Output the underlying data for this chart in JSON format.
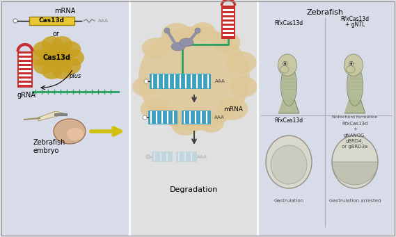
{
  "bg_color": "#e0e0e0",
  "panel1_bg": "#d8dce8",
  "panel3_bg": "#d8dce8",
  "yellow_box_color": "#e8c832",
  "cas13d_protein_color": "#c8a020",
  "grna_stem_color": "#c83030",
  "grna_tail_color": "#28a060",
  "mrna_box_color": "#40a0c0",
  "cell_color": "#dfc896",
  "scissors_color": "#9090a8",
  "fish_body_color": "#b0b890",
  "fish_body2_color": "#c8c8a0",
  "embryo_color": "#d4b090",
  "title_zebrafish": "Zebrafish",
  "label_mrna_top": "mRNA",
  "label_cas13d_box": "Cas13d",
  "label_or": "or",
  "label_cas13d_protein": "Cas13d",
  "label_plus": "plus",
  "label_grna": "gRNA",
  "label_zebrafish_embryo": "Zebrafish\nembryo",
  "label_degradation": "Degradation",
  "label_mrna_mid": "mRNA",
  "label_aaa1": "AAA",
  "label_aaa2": "AAA",
  "label_aaa3": "AAA",
  "label_rfxcas13d_1": "RfxCas13d",
  "label_rfxcas13d_gntl": "RfxCas13d\n+ gNTL",
  "label_rfxcas13d_2": "RfxCas13d",
  "label_notochord": "Notochord formation\nRfxCas13d\n+\ngNANOG,\ngBRD4,\nor gBRD3a",
  "label_gastrulation": "Gastrulation",
  "label_gastrulation_arrested": "Gastrulation arrested"
}
